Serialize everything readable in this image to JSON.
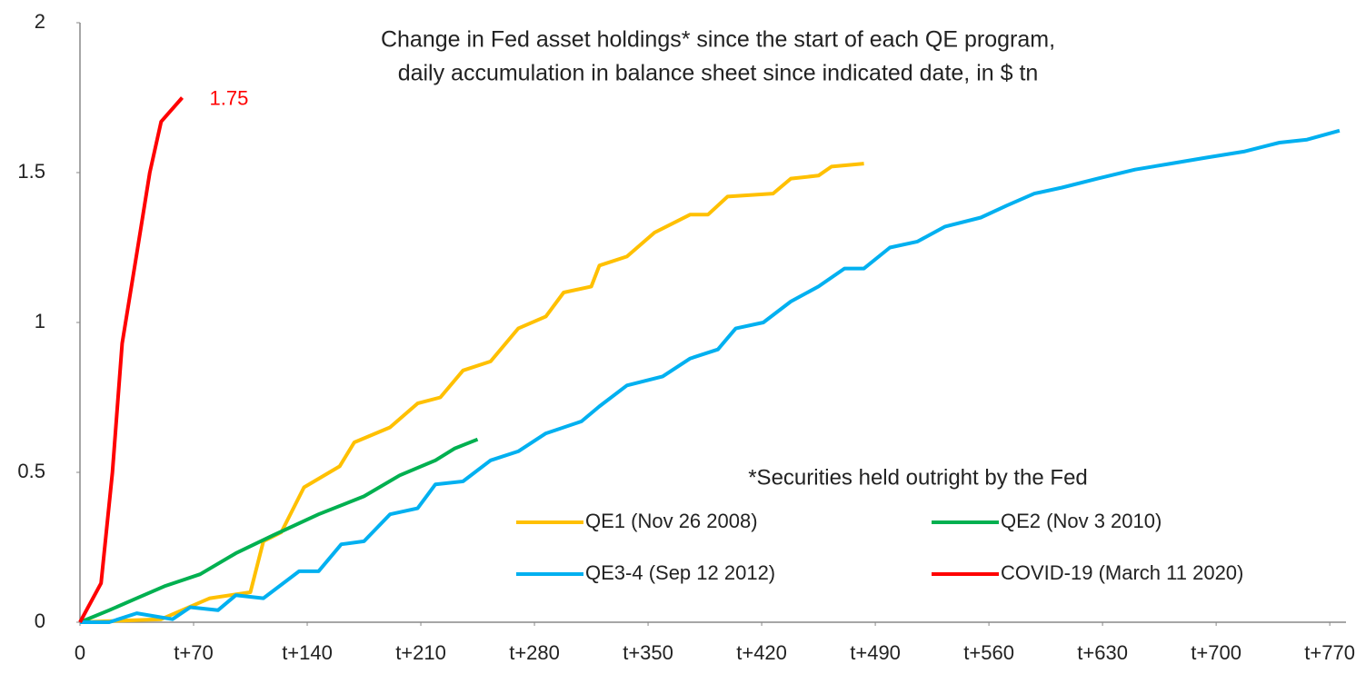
{
  "chart_data": {
    "type": "line",
    "title": [
      "Change in Fed asset holdings* since the start of each QE program,",
      "daily accumulation in balance sheet since indicated date, in $ tn"
    ],
    "note": "*Securities held outright by the Fed",
    "xlim": [
      0,
      780
    ],
    "ylim": [
      0,
      2
    ],
    "xticks": [
      0,
      {
        "value": 70,
        "label": "t+70"
      },
      {
        "value": 140,
        "label": "t+140"
      },
      {
        "value": 210,
        "label": "t+210"
      },
      {
        "value": 280,
        "label": "t+280"
      },
      {
        "value": 350,
        "label": "t+350"
      },
      {
        "value": 420,
        "label": "t+420"
      },
      {
        "value": 490,
        "label": "t+490"
      },
      {
        "value": 560,
        "label": "t+560"
      },
      {
        "value": 630,
        "label": "t+630"
      },
      {
        "value": 700,
        "label": "t+700"
      },
      {
        "value": 770,
        "label": "t+770"
      }
    ],
    "yticks": [
      0,
      0.5,
      1,
      1.5,
      2
    ],
    "grid": false,
    "series": [
      {
        "name": "QE1 (Nov 26 2008)",
        "color": "#ffc000",
        "x": [
          0,
          50,
          80,
          105,
          113,
          124,
          138,
          160,
          169,
          191,
          208,
          222,
          236,
          253,
          270,
          287,
          298,
          315,
          320,
          337,
          354,
          376,
          387,
          399,
          427,
          438,
          455,
          463,
          483
        ],
        "values": [
          0,
          0.01,
          0.08,
          0.1,
          0.27,
          0.3,
          0.45,
          0.52,
          0.6,
          0.65,
          0.73,
          0.75,
          0.84,
          0.87,
          0.98,
          1.02,
          1.1,
          1.12,
          1.19,
          1.22,
          1.3,
          1.36,
          1.36,
          1.42,
          1.43,
          1.48,
          1.49,
          1.52,
          1.53
        ]
      },
      {
        "name": "QE2 (Nov 3 2010)",
        "color": "#00b050",
        "x": [
          0,
          18,
          35,
          52,
          74,
          96,
          119,
          147,
          175,
          197,
          219,
          231,
          245
        ],
        "values": [
          0,
          0.04,
          0.08,
          0.12,
          0.16,
          0.23,
          0.29,
          0.36,
          0.42,
          0.49,
          0.54,
          0.58,
          0.61
        ]
      },
      {
        "name": "QE3-4 (Sep 12 2012)",
        "color": "#00b0f0",
        "x": [
          0,
          18,
          35,
          57,
          68,
          85,
          96,
          113,
          135,
          147,
          161,
          175,
          191,
          208,
          219,
          236,
          253,
          270,
          287,
          309,
          320,
          337,
          359,
          376,
          393,
          404,
          421,
          438,
          455,
          471,
          483,
          499,
          516,
          533,
          555,
          571,
          588,
          605,
          627,
          650,
          672,
          694,
          717,
          739,
          756,
          776
        ],
        "values": [
          0,
          0,
          0.03,
          0.01,
          0.05,
          0.04,
          0.09,
          0.08,
          0.17,
          0.17,
          0.26,
          0.27,
          0.36,
          0.38,
          0.46,
          0.47,
          0.54,
          0.57,
          0.63,
          0.67,
          0.72,
          0.79,
          0.82,
          0.88,
          0.91,
          0.98,
          1.0,
          1.07,
          1.12,
          1.18,
          1.18,
          1.25,
          1.27,
          1.32,
          1.35,
          1.39,
          1.43,
          1.45,
          1.48,
          1.51,
          1.53,
          1.55,
          1.57,
          1.6,
          1.61,
          1.64
        ]
      },
      {
        "name": "COVID-19 (March 11 2020)",
        "color": "#ff0000",
        "x": [
          0,
          13,
          20,
          26,
          35,
          43,
          50,
          63
        ],
        "values": [
          0,
          0.13,
          0.5,
          0.93,
          1.23,
          1.5,
          1.67,
          1.75
        ]
      }
    ],
    "end_label_series": 3
  }
}
